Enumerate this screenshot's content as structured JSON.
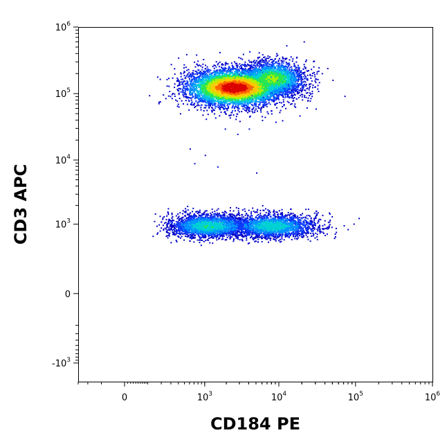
{
  "chart_data": {
    "type": "scatter",
    "style": "flow cytometry density dot plot",
    "xlabel": "CD184 PE",
    "ylabel": "CD3 APC",
    "x_scale": "biexponential",
    "y_scale": "biexponential",
    "xlim": [
      -300,
      1000000
    ],
    "ylim": [
      -2000,
      1000000
    ],
    "x_ticks": [
      {
        "value": 0,
        "base": "0",
        "exp": ""
      },
      {
        "value": 1000,
        "base": "10",
        "exp": "3"
      },
      {
        "value": 10000,
        "base": "10",
        "exp": "4"
      },
      {
        "value": 100000,
        "base": "10",
        "exp": "5"
      },
      {
        "value": 1000000,
        "base": "10",
        "exp": "6"
      }
    ],
    "y_ticks": [
      {
        "value": 1000000,
        "base": "10",
        "exp": "6"
      },
      {
        "value": 100000,
        "base": "10",
        "exp": "5"
      },
      {
        "value": 10000,
        "base": "10",
        "exp": "4"
      },
      {
        "value": 1000,
        "base": "10",
        "exp": "3"
      },
      {
        "value": 0,
        "base": "0",
        "exp": ""
      },
      {
        "value": -1000,
        "base": "-10",
        "exp": "3"
      }
    ],
    "density_colors": [
      "#0000c8",
      "#0a3cff",
      "#0096ff",
      "#00d2d2",
      "#28e650",
      "#b4f000",
      "#ffc800",
      "#ff6400",
      "#dc0000"
    ],
    "populations": [
      {
        "cx": 2500,
        "cy": 125000,
        "sx_log": 0.34,
        "sy_log": 0.14,
        "n": 5200,
        "peak": 0.95
      },
      {
        "cx": 8000,
        "cy": 170000,
        "sx_log": 0.22,
        "sy_log": 0.13,
        "n": 2200,
        "peak": 0.55
      },
      {
        "cx": 1100,
        "cy": 950,
        "sx_log": 0.3,
        "sy_log": 0.1,
        "n": 2300,
        "peak": 0.4
      },
      {
        "cx": 8000,
        "cy": 950,
        "sx_log": 0.3,
        "sy_log": 0.1,
        "n": 2100,
        "peak": 0.38
      }
    ],
    "scattered_events": [
      [
        600,
        15000
      ],
      [
        700,
        9000
      ],
      [
        1500,
        8000
      ],
      [
        1900,
        30000
      ],
      [
        2800,
        25000
      ],
      [
        4000,
        30000
      ],
      [
        6500,
        45000
      ],
      [
        9000,
        38000
      ],
      [
        5000,
        6500
      ],
      [
        1000,
        12000
      ],
      [
        1400,
        44000
      ],
      [
        2200,
        48000
      ],
      [
        11000,
        40000
      ],
      [
        3000,
        39000
      ]
    ]
  }
}
